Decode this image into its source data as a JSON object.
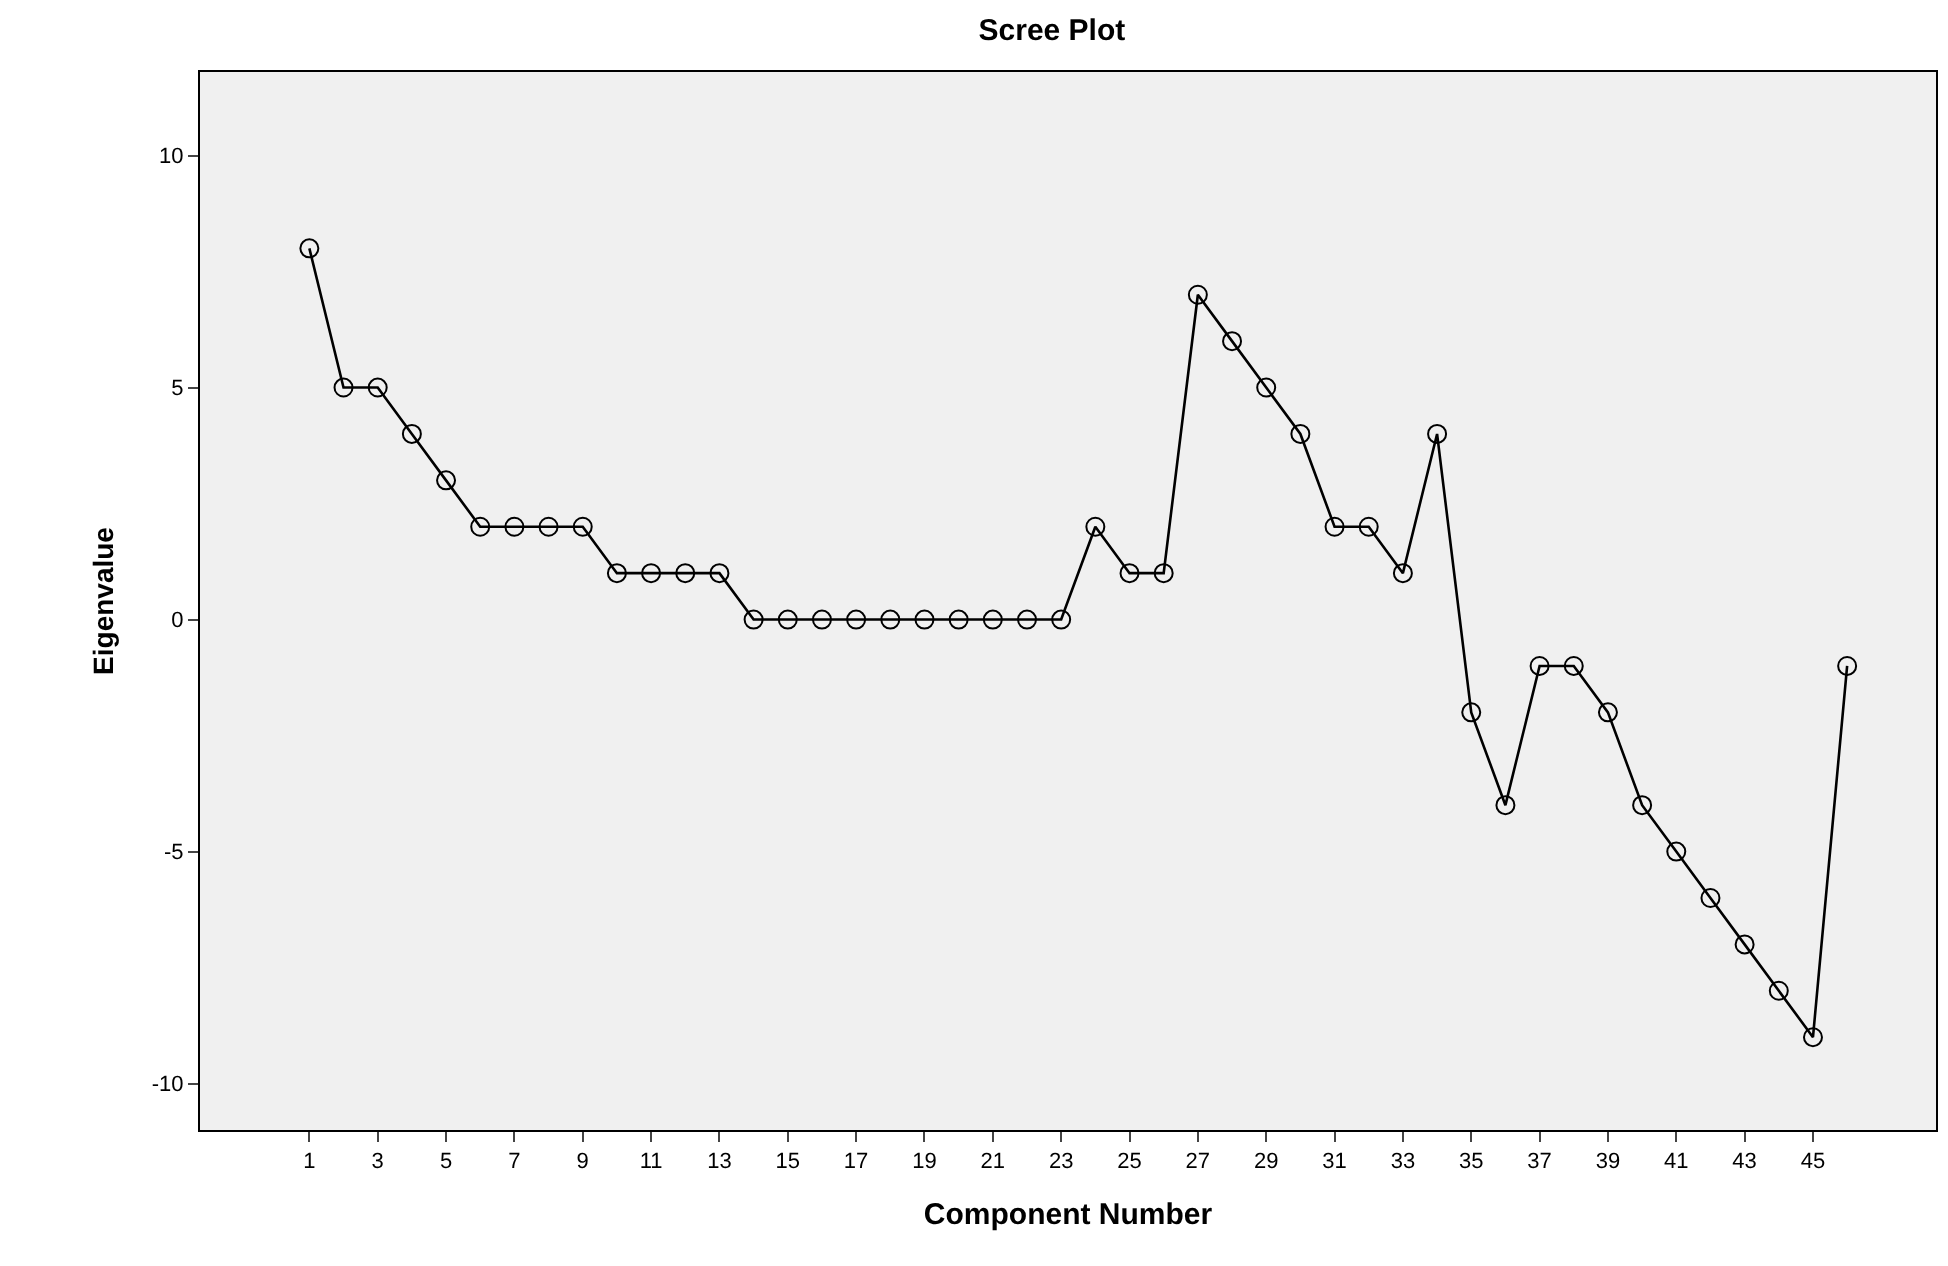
{
  "chart_data": {
    "type": "line",
    "title": "Scree Plot",
    "xlabel": "Component Number",
    "ylabel": "Eigenvalue",
    "x": [
      1,
      2,
      3,
      4,
      5,
      6,
      7,
      8,
      9,
      10,
      11,
      12,
      13,
      14,
      15,
      16,
      17,
      18,
      19,
      20,
      21,
      22,
      23,
      24,
      25,
      26,
      27,
      28,
      29,
      30,
      31,
      32,
      33,
      34,
      35,
      36,
      37,
      38,
      39,
      40,
      41,
      42,
      43,
      44,
      45,
      46
    ],
    "series": [
      {
        "color": "#000000",
        "values": [
          8,
          5,
          5,
          4,
          3,
          2,
          2,
          2,
          2,
          1,
          1,
          1,
          1,
          0,
          0,
          0,
          0,
          0,
          0,
          0,
          0,
          0,
          0,
          2,
          1,
          1,
          7,
          6,
          5,
          4,
          2,
          2,
          1,
          4,
          -2,
          -4,
          -1,
          -1,
          -2,
          -4,
          -5,
          -6,
          -7,
          -8,
          -9,
          -1
        ]
      }
    ],
    "xlim": [
      -2.2,
      48.6
    ],
    "xticks": [
      1,
      3,
      5,
      7,
      9,
      11,
      13,
      15,
      17,
      19,
      21,
      23,
      25,
      27,
      29,
      31,
      33,
      35,
      37,
      39,
      41,
      43,
      45
    ],
    "ylim": [
      -11,
      11.8
    ],
    "yticks": [
      -10,
      -5,
      0,
      5,
      10
    ],
    "grid": false,
    "legend": false,
    "marker": "circle",
    "line_style": "solid"
  }
}
